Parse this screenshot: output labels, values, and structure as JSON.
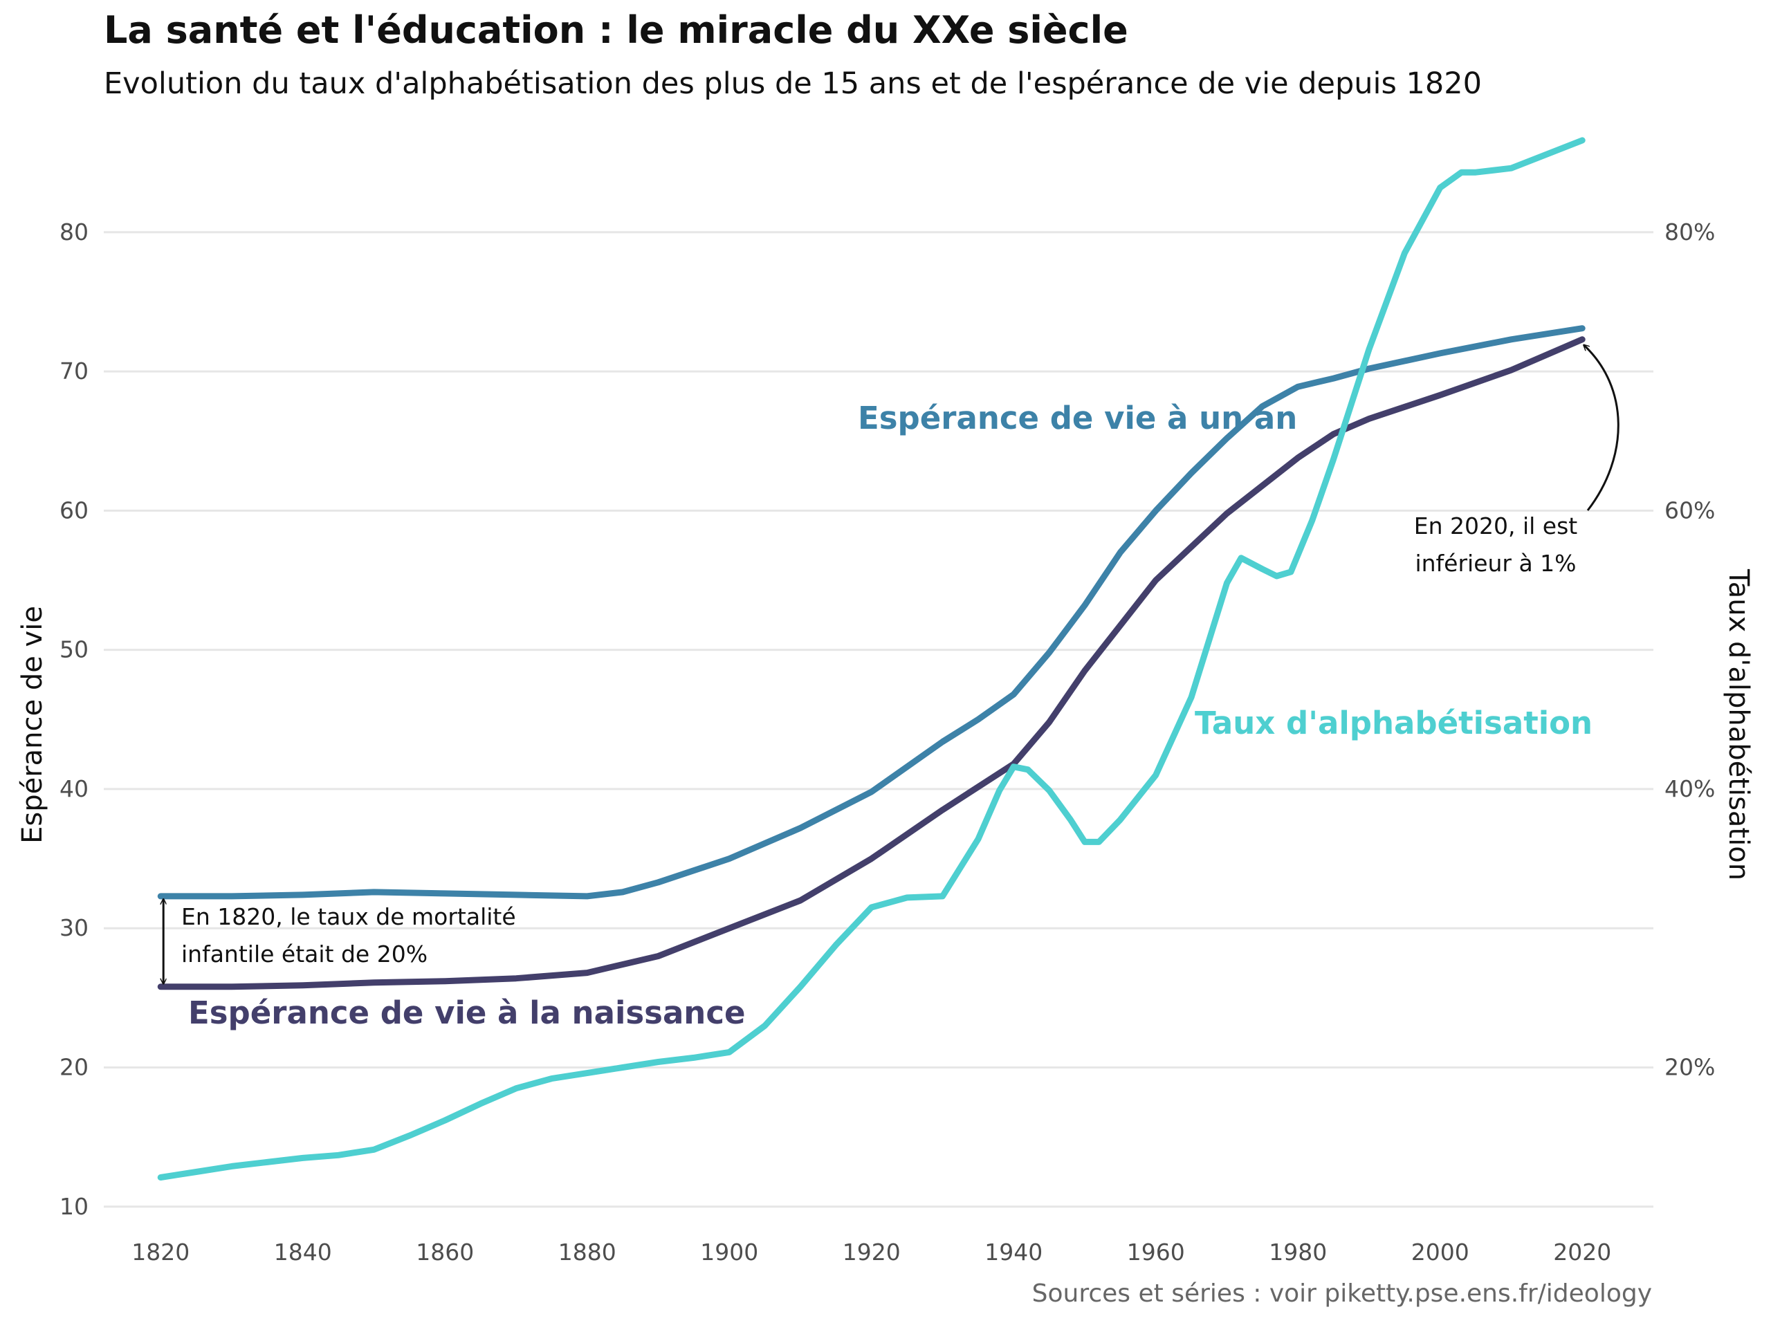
{
  "header": {
    "title": "La santé et l'éducation : le miracle du XXe siècle",
    "subtitle": "Evolution du taux d'alphabétisation des plus de 15 ans et de l'espérance de vie depuis 1820"
  },
  "footer": {
    "source": "Sources et séries : voir piketty.pse.ens.fr/ideology"
  },
  "colors": {
    "life_one_year": "#3d82a8",
    "life_birth": "#433f6b",
    "literacy": "#4ecfd0",
    "grid": "#e6e6e6"
  },
  "chart_data": {
    "type": "line",
    "title": "La santé et l'éducation : le miracle du XXe siècle",
    "subtitle": "Evolution du taux d'alphabétisation des plus de 15 ans et de l'espérance de vie depuis 1820",
    "xlabel": "",
    "ylabel": "Espérance de vie",
    "y2label": "Taux d'alphabétisation",
    "xlim": [
      1812,
      2030
    ],
    "ylim": [
      8.5,
      86
    ],
    "y2lim": [
      0.085,
      0.86
    ],
    "x_ticks": [
      1820,
      1840,
      1860,
      1880,
      1900,
      1920,
      1940,
      1960,
      1980,
      2000,
      2020
    ],
    "x_tick_labels": [
      "1820",
      "1840",
      "1860",
      "1880",
      "1900",
      "1920",
      "1940",
      "1960",
      "1980",
      "2000",
      "2020"
    ],
    "y_ticks": [
      10,
      20,
      30,
      40,
      50,
      60,
      70,
      80
    ],
    "y_tick_labels": [
      "10",
      "20",
      "30",
      "40",
      "50",
      "60",
      "70",
      "80"
    ],
    "y2_ticks": [
      0.2,
      0.4,
      0.6,
      0.8
    ],
    "y2_tick_labels": [
      "20%",
      "40%",
      "60%",
      "80%"
    ],
    "grid": true,
    "legend": "none",
    "series": [
      {
        "name": "Espérance de vie à un an",
        "axis": "left",
        "color": "#3d82a8",
        "x": [
          1820,
          1830,
          1840,
          1850,
          1860,
          1870,
          1880,
          1885,
          1890,
          1900,
          1910,
          1920,
          1930,
          1935,
          1940,
          1945,
          1950,
          1955,
          1960,
          1965,
          1970,
          1975,
          1980,
          1985,
          1990,
          2000,
          2010,
          2020
        ],
        "y": [
          32.3,
          32.3,
          32.4,
          32.6,
          32.5,
          32.4,
          32.3,
          32.6,
          33.3,
          35.0,
          37.2,
          39.8,
          43.4,
          45.0,
          46.8,
          49.8,
          53.2,
          57.0,
          60.0,
          62.7,
          65.2,
          67.5,
          68.9,
          69.5,
          70.2,
          71.3,
          72.3,
          73.1
        ]
      },
      {
        "name": "Espérance de vie à la naissance",
        "axis": "left",
        "color": "#433f6b",
        "x": [
          1820,
          1830,
          1840,
          1850,
          1860,
          1870,
          1880,
          1890,
          1900,
          1910,
          1920,
          1930,
          1940,
          1945,
          1950,
          1960,
          1970,
          1980,
          1985,
          1990,
          2000,
          2010,
          2020
        ],
        "y": [
          25.8,
          25.8,
          25.9,
          26.1,
          26.2,
          26.4,
          26.8,
          28.0,
          30.0,
          32.0,
          35.0,
          38.5,
          41.8,
          44.8,
          48.5,
          55.0,
          59.8,
          63.8,
          65.5,
          66.6,
          68.3,
          70.1,
          72.3
        ]
      },
      {
        "name": "Taux d'alphabétisation",
        "axis": "right",
        "color": "#4ecfd0",
        "x": [
          1820,
          1825,
          1830,
          1835,
          1840,
          1845,
          1850,
          1855,
          1860,
          1865,
          1870,
          1875,
          1880,
          1885,
          1890,
          1895,
          1900,
          1905,
          1910,
          1915,
          1920,
          1925,
          1930,
          1935,
          1938,
          1940,
          1942,
          1945,
          1948,
          1950,
          1952,
          1955,
          1960,
          1965,
          1970,
          1972,
          1975,
          1977,
          1979,
          1982,
          1985,
          1990,
          1995,
          2000,
          2003,
          2005,
          2010,
          2015,
          2020
        ],
        "y": [
          0.121,
          0.125,
          0.129,
          0.132,
          0.135,
          0.137,
          0.141,
          0.151,
          0.162,
          0.174,
          0.185,
          0.192,
          0.196,
          0.2,
          0.204,
          0.207,
          0.211,
          0.23,
          0.258,
          0.288,
          0.315,
          0.322,
          0.323,
          0.364,
          0.399,
          0.416,
          0.414,
          0.399,
          0.378,
          0.362,
          0.362,
          0.378,
          0.41,
          0.466,
          0.548,
          0.566,
          0.558,
          0.553,
          0.556,
          0.593,
          0.637,
          0.716,
          0.785,
          0.832,
          0.843,
          0.843,
          0.846,
          0.856,
          0.866
        ]
      }
    ],
    "annotations": [
      {
        "text_lines": [
          "En 1820, le taux de mortalité",
          "infantile était de 20%"
        ],
        "arrow": {
          "x": 1820,
          "y_from": 32.3,
          "y_to": 25.8,
          "double": true
        }
      },
      {
        "text_lines": [
          "En 2020, il est",
          "inférieur à 1%"
        ],
        "arrow_to": {
          "x": 2020,
          "y": 72.3
        }
      }
    ]
  }
}
